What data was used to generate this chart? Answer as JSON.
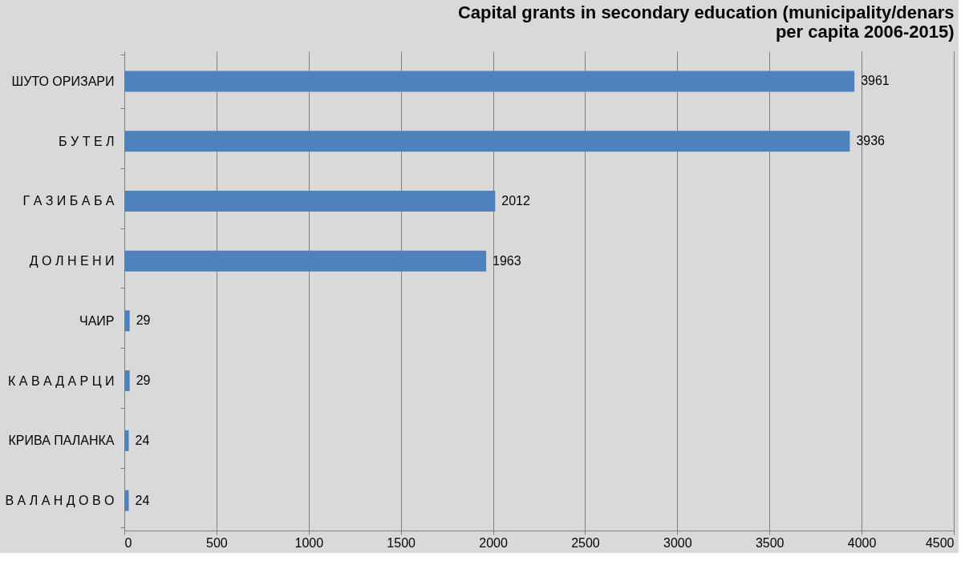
{
  "chart_data": {
    "type": "bar",
    "orientation": "horizontal",
    "title": "Capital grants in secondary education (municipality/denars per capita 2006-2015)",
    "categories": [
      "ШУТО ОРИЗАРИ",
      "Б У Т Е Л",
      "Г А З И Б А Б А",
      "Д О Л Н Е Н И",
      "ЧАИР",
      "К А В А Д А Р Ц И",
      "КРИВА ПАЛАНКА",
      "В А Л А Н Д О В О"
    ],
    "values": [
      3961,
      3936,
      2012,
      1963,
      29,
      29,
      24,
      24
    ],
    "color": "#4f81bd",
    "xlim": [
      0,
      4500
    ],
    "xticks": [
      0,
      500,
      1000,
      1500,
      2000,
      2500,
      3000,
      3500,
      4000,
      4500
    ],
    "grid": "x",
    "data_labels": true
  }
}
